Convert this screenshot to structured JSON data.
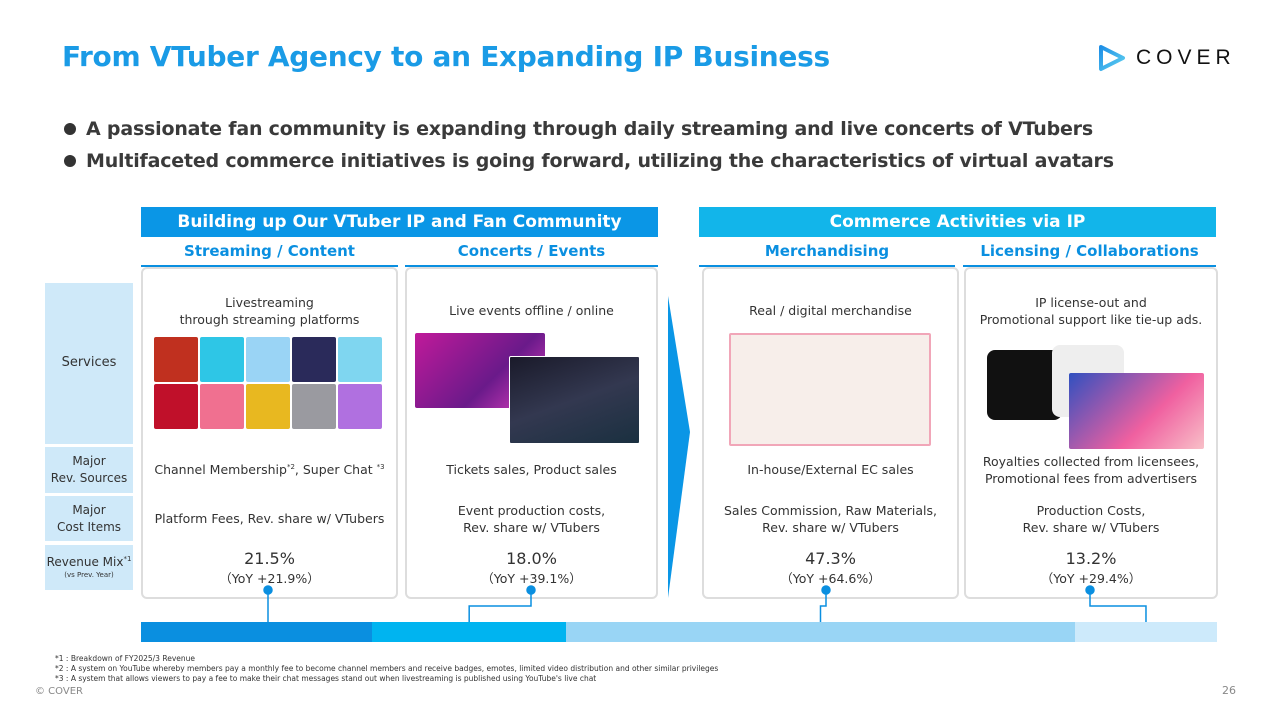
{
  "title": "From VTuber Agency to an Expanding IP Business",
  "logo": {
    "text": "COVER",
    "color": "#1a9be6"
  },
  "bullets": [
    "A passionate fan community is expanding through daily streaming and live concerts of VTubers",
    "Multifaceted commerce initiatives is going forward, utilizing the characteristics of virtual avatars"
  ],
  "groups": [
    {
      "label": "Building up Our VTuber IP and Fan Community",
      "color": "#0a96e6"
    },
    {
      "label": "Commerce Activities via IP",
      "color": "#12b5ea"
    }
  ],
  "row_labels": {
    "services": "Services",
    "rev_line1": "Major",
    "rev_line2": "Rev. Sources",
    "cost_line1": "Major",
    "cost_line2": "Cost Items",
    "mix": "Revenue Mix",
    "mix_note": "*1",
    "mix_sub": "(vs Prev. Year)"
  },
  "columns": [
    {
      "header": "Streaming / Content",
      "service_l1": "Livestreaming",
      "service_l2": "through streaming platforms",
      "rev": "Channel Membership",
      "rev_sup1": "*2",
      "rev_b": ", Super Chat ",
      "rev_sup2": "*3",
      "cost_l1": "Platform Fees, Rev. share w/ VTubers",
      "cost_l2": "",
      "pct": "21.5%",
      "yoy": "（YoY +21.9%）",
      "share": 21.5,
      "bar_color": "#0a8fe0"
    },
    {
      "header": "Concerts / Events",
      "service_l1": "Live events offline / online",
      "service_l2": "",
      "rev": "Tickets sales, Product sales",
      "cost_l1": "Event production costs,",
      "cost_l2": "Rev. share w/ VTubers",
      "pct": "18.0%",
      "yoy": "（YoY +39.1%）",
      "share": 18.0,
      "bar_color": "#00b4f0"
    },
    {
      "header": "Merchandising",
      "service_l1": "Real / digital merchandise",
      "service_l2": "",
      "rev": "In-house/External EC sales",
      "cost_l1": "Sales Commission, Raw Materials,",
      "cost_l2": "Rev. share w/ VTubers",
      "pct": "47.3%",
      "yoy": "（YoY +64.6%）",
      "share": 47.3,
      "bar_color": "#99d5f5"
    },
    {
      "header": "Licensing / Collaborations",
      "service_l1": "IP license-out and",
      "service_l2": "Promotional support like tie-up ads.",
      "rev": "Royalties collected from licensees,",
      "rev_l2": "Promotional fees from advertisers",
      "cost_l1": "Production Costs,",
      "cost_l2": "Rev. share w/ VTubers",
      "pct": "13.2%",
      "yoy": "（YoY +29.4%）",
      "share": 13.2,
      "bar_color": "#cdeafb"
    }
  ],
  "footnotes": [
    "*1 : Breakdown of FY2025/3 Revenue",
    "*2 : A system on YouTube whereby members pay a monthly fee to become channel members and receive badges, emotes, limited video distribution and other similar privileges",
    "*3 : A system that allows viewers to pay a fee to make their chat messages stand out when livestreaming is published using YouTube's live chat"
  ],
  "copyright": "© COVER",
  "page_number": "26"
}
